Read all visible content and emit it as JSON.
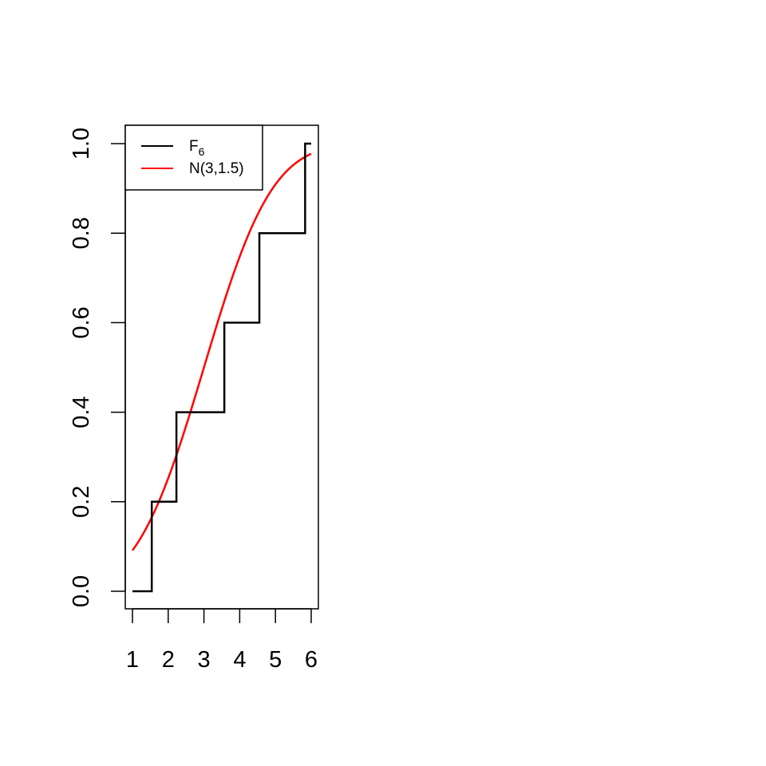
{
  "chart_data": {
    "type": "line",
    "title": "",
    "xlabel": "",
    "ylabel": "",
    "xlim": [
      1,
      6
    ],
    "ylim": [
      0,
      1
    ],
    "x_ticks": [
      1,
      2,
      3,
      4,
      5,
      6
    ],
    "x_tick_labels": [
      "1",
      "2",
      "3",
      "4",
      "5",
      "6"
    ],
    "y_ticks": [
      0,
      0.2,
      0.4,
      0.6,
      0.8,
      1.0
    ],
    "y_tick_labels": [
      "0.0",
      "0.2",
      "0.4",
      "0.6",
      "0.8",
      "1.0"
    ],
    "grid": false,
    "legend_position": "top-left",
    "series": [
      {
        "name_main": "F",
        "name_sub": "6",
        "kind": "step",
        "color": "#000000",
        "x": [
          1.0,
          1.54,
          2.23,
          3.57,
          4.55,
          5.83,
          6.0
        ],
        "y": [
          0.0,
          0.2,
          0.4,
          0.6,
          0.8,
          1.0,
          1.0
        ]
      },
      {
        "name": "N(3,1.5)",
        "kind": "normal_cdf",
        "mean": 3,
        "sd": 1.5,
        "color": "#ff0000"
      }
    ]
  }
}
